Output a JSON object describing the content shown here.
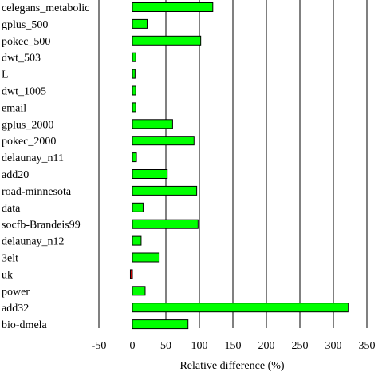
{
  "chart_data": {
    "type": "bar",
    "orientation": "horizontal",
    "xlabel": "Relative difference (%)",
    "xlim": [
      -50,
      350
    ],
    "xticks": [
      -50,
      0,
      50,
      100,
      150,
      200,
      250,
      300,
      350
    ],
    "grid": "vertical",
    "positive_color": "#00ff00",
    "negative_color": "#cc0000",
    "categories": [
      "celegans_metabolic",
      "gplus_500",
      "pokec_500",
      "dwt_503",
      "L",
      "dwt_1005",
      "email",
      "gplus_2000",
      "pokec_2000",
      "delaunay_n11",
      "add20",
      "road-minnesota",
      "data",
      "socfb-Brandeis99",
      "delaunay_n12",
      "3elt",
      "uk",
      "power",
      "add32",
      "bio-dmela"
    ],
    "values": [
      120,
      22,
      102,
      5,
      4,
      5,
      5,
      60,
      92,
      6,
      52,
      96,
      16,
      98,
      13,
      40,
      -3,
      19,
      323,
      83
    ]
  }
}
